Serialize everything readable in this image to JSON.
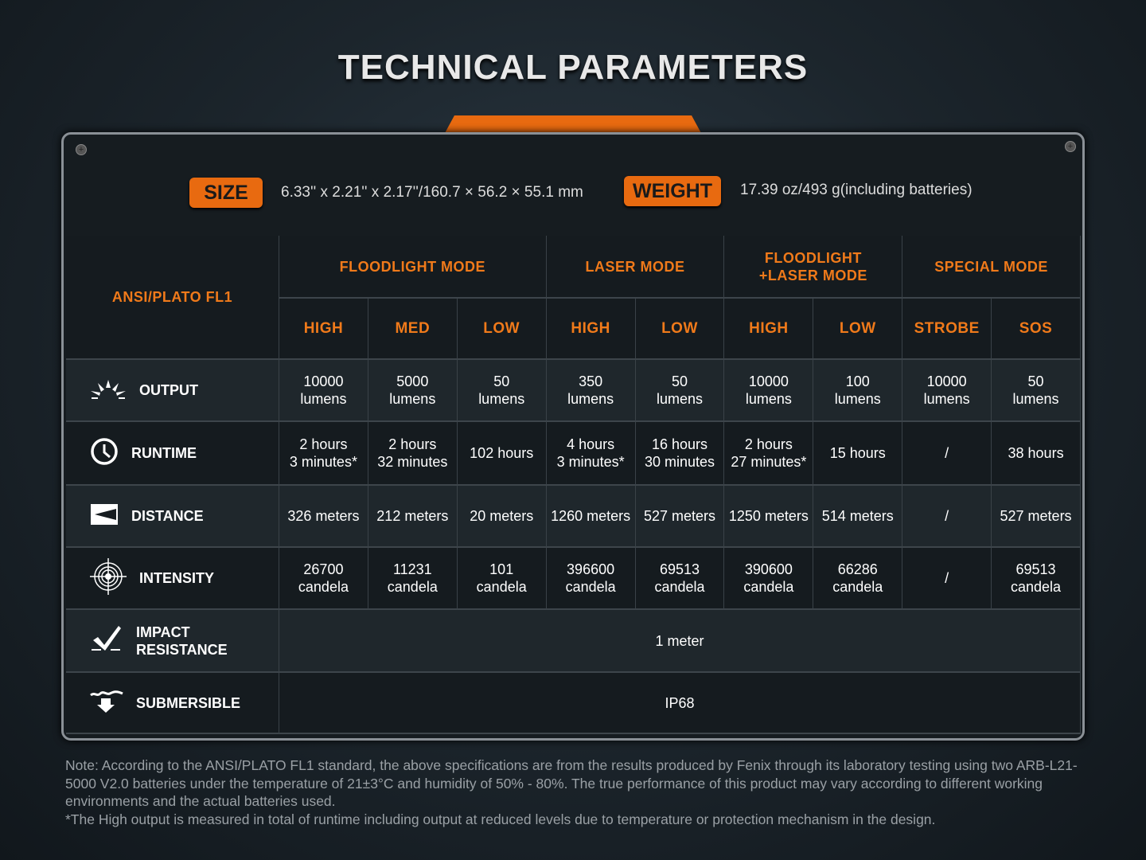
{
  "title": "TECHNICAL PARAMETERS",
  "size": {
    "label": "SIZE",
    "value": "6.33'' x 2.21'' x 2.17''/160.7 × 56.2 × 55.1 mm"
  },
  "weight": {
    "label": "WEIGHT",
    "value": "17.39 oz/493 g(including batteries)"
  },
  "table": {
    "corner": "ANSI/PLATO FL1",
    "modes": [
      "FLOODLIGHT MODE",
      "LASER MODE",
      "FLOODLIGHT\n+LASER MODE",
      "SPECIAL MODE"
    ],
    "levels": [
      "HIGH",
      "MED",
      "LOW",
      "HIGH",
      "LOW",
      "HIGH",
      "LOW",
      "STROBE",
      "SOS"
    ],
    "rows": [
      {
        "label": "OUTPUT",
        "icon": "sunburst-icon",
        "cells": [
          "10000\nlumens",
          "5000\nlumens",
          "50\nlumens",
          "350\nlumens",
          "50\nlumens",
          "10000\nlumens",
          "100\nlumens",
          "10000\nlumens",
          "50\nlumens"
        ]
      },
      {
        "label": "RUNTIME",
        "icon": "clock-icon",
        "cells": [
          "2 hours\n3 minutes*",
          "2 hours\n32 minutes",
          "102 hours",
          "4 hours\n3 minutes*",
          "16 hours\n30 minutes",
          "2 hours\n27 minutes*",
          "15 hours",
          "/",
          "38 hours"
        ]
      },
      {
        "label": "DISTANCE",
        "icon": "beam-distance-icon",
        "cells": [
          "326 meters",
          "212 meters",
          "20 meters",
          "1260 meters",
          "527 meters",
          "1250 meters",
          "514 meters",
          "/",
          "527 meters"
        ]
      },
      {
        "label": "INTENSITY",
        "icon": "target-icon",
        "cells": [
          "26700\ncandela",
          "11231\ncandela",
          "101\ncandela",
          "396600\ncandela",
          "69513\ncandela",
          "390600\ncandela",
          "66286\ncandela",
          "/",
          "69513\ncandela"
        ]
      }
    ],
    "impact": {
      "label": "IMPACT\nRESISTANCE",
      "icon": "impact-check-icon",
      "value": "1 meter"
    },
    "submersible": {
      "label": "SUBMERSIBLE",
      "icon": "water-drop-icon",
      "value": "IP68"
    }
  },
  "note": "Note: According to the ANSI/PLATO FL1 standard, the above specifications are from the results produced by Fenix through its laboratory testing using two ARB-L21-5000 V2.0 batteries under the temperature of 21±3°C and humidity of 50% - 80%. The true performance of this product may vary according to different working environments and the actual batteries used.",
  "footnote": "*The High output is measured in total of runtime including output at reduced levels due to temperature or protection mechanism in the design.",
  "colors": {
    "accent": "#e86a10",
    "background": "#161c20"
  }
}
